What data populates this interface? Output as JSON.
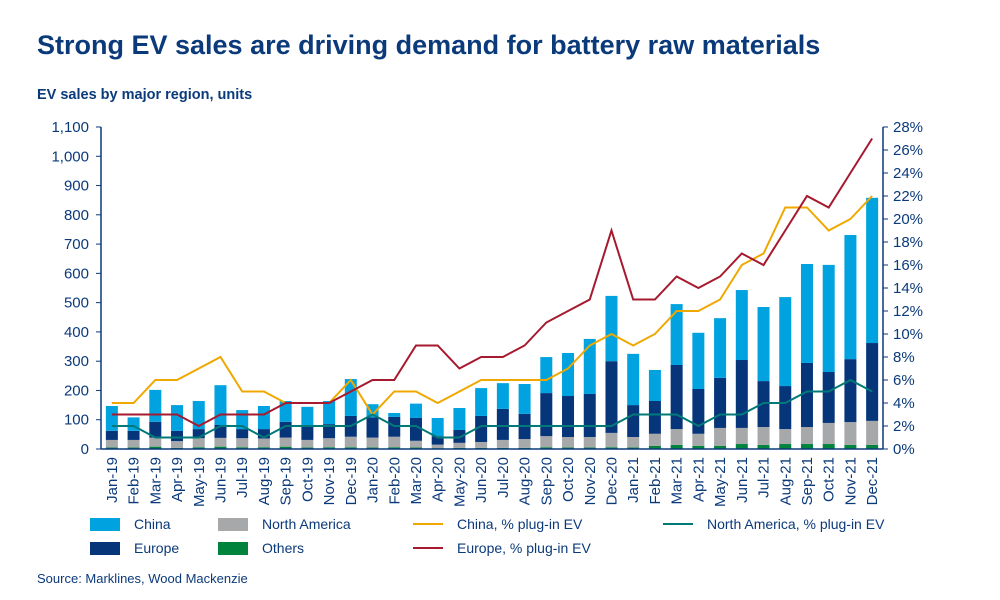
{
  "title": "Strong EV sales are driving demand for battery raw materials",
  "source": "Source: Marklines, Wood Mackenzie",
  "chart_data": {
    "type": "bar",
    "subtitle": "EV sales by major region, units",
    "categories": [
      "Jan-19",
      "Feb-19",
      "Mar-19",
      "Apr-19",
      "May-19",
      "Jun-19",
      "Jul-19",
      "Aug-19",
      "Sep-19",
      "Oct-19",
      "Nov-19",
      "Dec-19",
      "Jan-20",
      "Feb-20",
      "Mar-20",
      "Apr-20",
      "May-20",
      "Jun-20",
      "Jul-20",
      "Aug-20",
      "Sep-20",
      "Oct-20",
      "Nov-20",
      "Dec-20",
      "Jan-21",
      "Feb-21",
      "Mar-21",
      "Apr-21",
      "May-21",
      "Jun-21",
      "Jul-21",
      "Aug-21",
      "Sep-21",
      "Oct-21",
      "Nov-21",
      "Dec-21"
    ],
    "y_left": {
      "range": [
        0,
        1100
      ],
      "ticks": [
        "0",
        "100",
        "200",
        "300",
        "400",
        "500",
        "600",
        "700",
        "800",
        "900",
        "1,000",
        "1,100"
      ]
    },
    "y_right": {
      "range": [
        0,
        28
      ],
      "ticks": [
        "0%",
        "2%",
        "4%",
        "6%",
        "8%",
        "10%",
        "12%",
        "14%",
        "16%",
        "18%",
        "20%",
        "22%",
        "24%",
        "26%",
        "28%"
      ]
    },
    "stacked_series": [
      {
        "name": "Others",
        "color": "#00843d",
        "values": [
          5,
          5,
          8,
          4,
          6,
          8,
          6,
          6,
          8,
          5,
          6,
          6,
          5,
          6,
          5,
          3,
          4,
          4,
          4,
          4,
          6,
          5,
          5,
          6,
          5,
          11,
          14,
          11,
          11,
          17,
          14,
          17,
          17,
          17,
          14,
          14
        ]
      },
      {
        "name": "North America",
        "color": "#a7a8aa",
        "values": [
          26,
          26,
          31,
          23,
          31,
          30,
          31,
          30,
          31,
          26,
          31,
          36,
          34,
          36,
          23,
          12,
          17,
          20,
          27,
          30,
          38,
          36,
          36,
          49,
          36,
          41,
          54,
          41,
          61,
          55,
          61,
          51,
          58,
          72,
          78,
          82
        ]
      },
      {
        "name": "Europe",
        "color": "#06357a",
        "values": [
          31,
          31,
          54,
          35,
          31,
          44,
          31,
          32,
          54,
          45,
          48,
          71,
          69,
          68,
          78,
          29,
          44,
          89,
          106,
          86,
          147,
          140,
          147,
          245,
          109,
          112,
          219,
          153,
          171,
          232,
          157,
          147,
          219,
          174,
          215,
          266
        ]
      },
      {
        "name": "China",
        "color": "#00a3e0",
        "values": [
          85,
          46,
          109,
          88,
          96,
          136,
          65,
          79,
          71,
          68,
          79,
          126,
          45,
          13,
          49,
          62,
          75,
          95,
          88,
          102,
          123,
          147,
          188,
          223,
          175,
          106,
          208,
          192,
          204,
          239,
          253,
          304,
          338,
          366,
          424,
          496
        ]
      }
    ],
    "line_series": [
      {
        "name": "China, % plug-in EV",
        "color": "#f0a800",
        "values": [
          4,
          4,
          6,
          6,
          7,
          8,
          5,
          5,
          4,
          4,
          4,
          6,
          3,
          5,
          5,
          4,
          5,
          6,
          6,
          6,
          6,
          7,
          9,
          10,
          9,
          10,
          12,
          12,
          13,
          16,
          17,
          21,
          21,
          19,
          20,
          22
        ]
      },
      {
        "name": "Europe, % plug-in EV",
        "color": "#a6192e",
        "values": [
          3,
          3,
          3,
          3,
          2,
          3,
          3,
          3,
          4,
          4,
          4,
          5,
          6,
          6,
          9,
          9,
          7,
          8,
          8,
          9,
          11,
          12,
          13,
          19,
          13,
          13,
          15,
          14,
          15,
          17,
          16,
          19,
          22,
          21,
          24,
          27
        ]
      },
      {
        "name": "North America, % plug-in EV",
        "color": "#007a78",
        "values": [
          2,
          2,
          1,
          1,
          1,
          2,
          2,
          1,
          2,
          2,
          2,
          2,
          3,
          2,
          2,
          1,
          1,
          2,
          2,
          2,
          2,
          2,
          2,
          2,
          3,
          3,
          3,
          2,
          3,
          3,
          4,
          4,
          5,
          5,
          6,
          5
        ]
      }
    ],
    "legend_placement": "bottom",
    "grid": false
  }
}
